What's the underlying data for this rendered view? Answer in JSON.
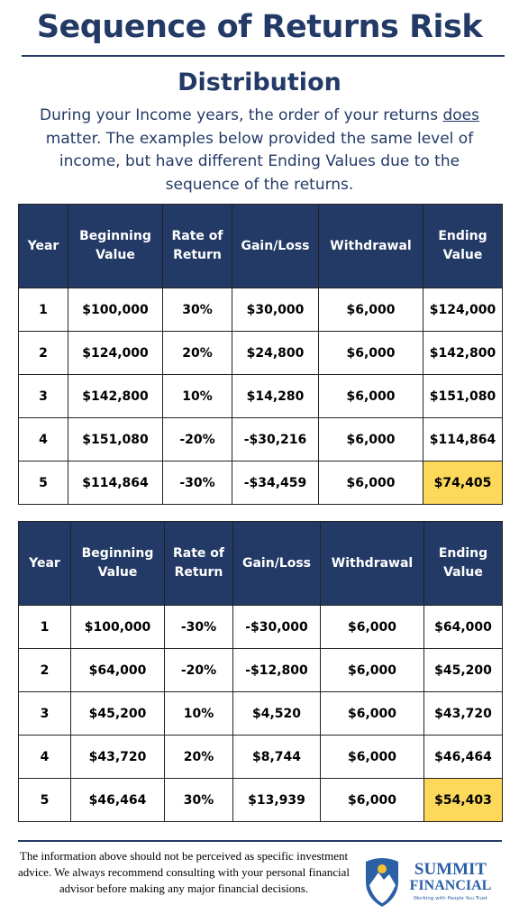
{
  "header": {
    "title": "Sequence of Returns Risk",
    "subtitle": "Distribution"
  },
  "description": {
    "before": "During your Income years, the order of your returns ",
    "emphasis": "does",
    "after": " matter. The examples below provided the same level of income, but have different Ending Values due to the sequence of the returns."
  },
  "tables": [
    {
      "columns": [
        "Year",
        "Beginning Value",
        "Rate of Return",
        "Gain/Loss",
        "Withdrawal",
        "Ending Value"
      ],
      "rows": [
        [
          "1",
          "$100,000",
          "30%",
          "$30,000",
          "$6,000",
          "$124,000"
        ],
        [
          "2",
          "$124,000",
          "20%",
          "$24,800",
          "$6,000",
          "$142,800"
        ],
        [
          "3",
          "$142,800",
          "10%",
          "$14,280",
          "$6,000",
          "$151,080"
        ],
        [
          "4",
          "$151,080",
          "-20%",
          "-$30,216",
          "$6,000",
          "$114,864"
        ],
        [
          "5",
          "$114,864",
          "-30%",
          "-$34,459",
          "$6,000",
          "$74,405"
        ]
      ]
    },
    {
      "columns": [
        "Year",
        "Beginning Value",
        "Rate of Return",
        "Gain/Loss",
        "Withdrawal",
        "Ending Value"
      ],
      "rows": [
        [
          "1",
          "$100,000",
          "-30%",
          "-$30,000",
          "$6,000",
          "$64,000"
        ],
        [
          "2",
          "$64,000",
          "-20%",
          "-$12,800",
          "$6,000",
          "$45,200"
        ],
        [
          "3",
          "$45,200",
          "10%",
          "$4,520",
          "$6,000",
          "$43,720"
        ],
        [
          "4",
          "$43,720",
          "20%",
          "$8,744",
          "$6,000",
          "$46,464"
        ],
        [
          "5",
          "$46,464",
          "30%",
          "$13,939",
          "$6,000",
          "$54,403"
        ]
      ]
    }
  ],
  "footer": {
    "disclaimer": "The information above should not be perceived as specific investment advice. We always recommend consulting with your personal financial advisor before making any major financial decisions.",
    "logo": {
      "name_line1": "SUMMIT",
      "name_line2": "FINANCIAL",
      "tagline": "Working with People You Trust"
    }
  }
}
